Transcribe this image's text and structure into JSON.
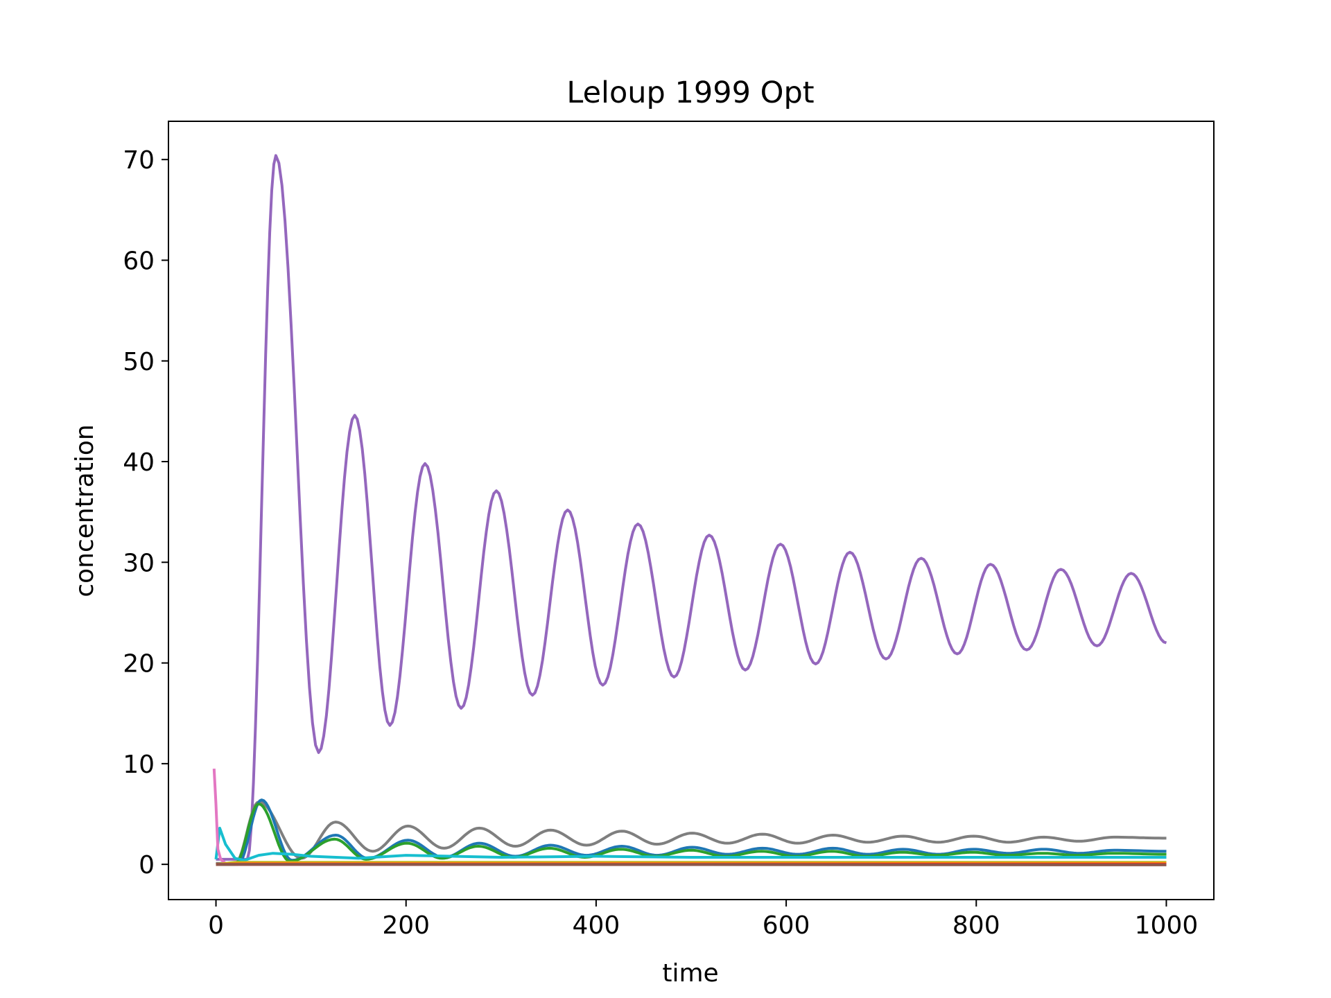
{
  "chart_data": {
    "type": "line",
    "title": "Leloup 1999 Opt",
    "xlabel": "time",
    "ylabel": "concentration",
    "xlim": [
      -50,
      1050
    ],
    "ylim": [
      -3.5,
      73.8
    ],
    "xticks": [
      0,
      200,
      400,
      600,
      800,
      1000
    ],
    "yticks": [
      0,
      10,
      20,
      30,
      40,
      50,
      60,
      70
    ],
    "grid": false,
    "legend": "none",
    "series": [
      {
        "color": "#9467bd",
        "kind": "decaying_oscillation",
        "start": 0.5,
        "rise_time": 30,
        "peaks": [
          [
            63,
            70.4
          ],
          [
            146,
            44.6
          ],
          [
            220,
            39.8
          ],
          [
            295,
            37.1
          ],
          [
            370,
            35.2
          ],
          [
            444,
            33.8
          ],
          [
            519,
            32.7
          ],
          [
            594,
            31.8
          ],
          [
            667,
            31.0
          ],
          [
            742,
            30.4
          ],
          [
            815,
            29.8
          ],
          [
            889,
            29.3
          ],
          [
            963,
            28.9
          ]
        ],
        "troughs": [
          [
            108,
            11.1
          ],
          [
            183,
            13.8
          ],
          [
            258,
            15.5
          ],
          [
            333,
            16.8
          ],
          [
            407,
            17.8
          ],
          [
            482,
            18.6
          ],
          [
            557,
            19.3
          ],
          [
            631,
            19.9
          ],
          [
            705,
            20.4
          ],
          [
            780,
            20.9
          ],
          [
            853,
            21.3
          ],
          [
            927,
            21.7
          ]
        ],
        "end": [
          1000,
          22.0
        ]
      },
      {
        "color": "#7f7f7f",
        "kind": "decaying_oscillation",
        "start": 0.1,
        "rise_time": 25,
        "peaks": [
          [
            45,
            6.2
          ],
          [
            126,
            4.2
          ],
          [
            202,
            3.8
          ],
          [
            277,
            3.6
          ],
          [
            352,
            3.4
          ],
          [
            427,
            3.3
          ],
          [
            501,
            3.1
          ],
          [
            575,
            3.0
          ],
          [
            649,
            2.9
          ],
          [
            723,
            2.8
          ],
          [
            797,
            2.8
          ],
          [
            871,
            2.7
          ],
          [
            945,
            2.7
          ]
        ],
        "troughs": [
          [
            90,
            0.6
          ],
          [
            165,
            1.3
          ],
          [
            240,
            1.6
          ],
          [
            315,
            1.8
          ],
          [
            390,
            1.9
          ],
          [
            464,
            2.0
          ],
          [
            538,
            2.1
          ],
          [
            612,
            2.1
          ],
          [
            686,
            2.2
          ],
          [
            760,
            2.2
          ],
          [
            834,
            2.2
          ],
          [
            908,
            2.3
          ]
        ],
        "end": [
          1000,
          2.6
        ]
      },
      {
        "color": "#1f77b4",
        "kind": "decaying_oscillation",
        "start": 0.0,
        "rise_time": 25,
        "peaks": [
          [
            48,
            6.4
          ],
          [
            126,
            2.9
          ],
          [
            202,
            2.4
          ],
          [
            277,
            2.1
          ],
          [
            352,
            1.9
          ],
          [
            427,
            1.8
          ],
          [
            501,
            1.7
          ],
          [
            575,
            1.6
          ],
          [
            649,
            1.6
          ],
          [
            723,
            1.5
          ],
          [
            797,
            1.5
          ],
          [
            871,
            1.5
          ],
          [
            945,
            1.4
          ]
        ],
        "troughs": [
          [
            80,
            0.4
          ],
          [
            160,
            0.6
          ],
          [
            240,
            0.7
          ],
          [
            315,
            0.8
          ],
          [
            390,
            0.9
          ],
          [
            464,
            0.9
          ],
          [
            538,
            1.0
          ],
          [
            612,
            1.0
          ],
          [
            686,
            1.0
          ],
          [
            760,
            1.0
          ],
          [
            834,
            1.1
          ],
          [
            908,
            1.1
          ]
        ],
        "end": [
          1000,
          1.3
        ]
      },
      {
        "color": "#2ca02c",
        "kind": "decaying_oscillation",
        "start": 0.0,
        "rise_time": 25,
        "peaks": [
          [
            45,
            6.0
          ],
          [
            125,
            2.5
          ],
          [
            201,
            2.1
          ],
          [
            276,
            1.8
          ],
          [
            351,
            1.6
          ],
          [
            426,
            1.5
          ],
          [
            500,
            1.4
          ],
          [
            574,
            1.3
          ],
          [
            648,
            1.3
          ],
          [
            722,
            1.2
          ],
          [
            796,
            1.2
          ],
          [
            870,
            1.1
          ],
          [
            944,
            1.1
          ]
        ],
        "troughs": [
          [
            78,
            0.3
          ],
          [
            158,
            0.5
          ],
          [
            238,
            0.6
          ],
          [
            313,
            0.7
          ],
          [
            388,
            0.7
          ],
          [
            462,
            0.8
          ],
          [
            536,
            0.8
          ],
          [
            610,
            0.8
          ],
          [
            684,
            0.8
          ],
          [
            758,
            0.9
          ],
          [
            832,
            0.9
          ],
          [
            906,
            0.9
          ]
        ],
        "end": [
          1000,
          1.0
        ]
      },
      {
        "color": "#17becf",
        "kind": "points",
        "points": [
          [
            0,
            0.5
          ],
          [
            4,
            3.6
          ],
          [
            10,
            2.0
          ],
          [
            20,
            0.6
          ],
          [
            30,
            0.4
          ],
          [
            45,
            0.9
          ],
          [
            60,
            1.1
          ],
          [
            80,
            1.0
          ],
          [
            100,
            0.8
          ],
          [
            150,
            0.6
          ],
          [
            200,
            0.9
          ],
          [
            300,
            0.7
          ],
          [
            400,
            0.8
          ],
          [
            500,
            0.7
          ],
          [
            600,
            0.7
          ],
          [
            700,
            0.7
          ],
          [
            800,
            0.7
          ],
          [
            900,
            0.7
          ],
          [
            1000,
            0.7
          ]
        ]
      },
      {
        "color": "#e377c2",
        "kind": "points",
        "points": [
          [
            -2,
            9.5
          ],
          [
            0,
            6.0
          ],
          [
            2,
            1.5
          ],
          [
            5,
            0.5
          ],
          [
            10,
            0.1
          ],
          [
            20,
            0.0
          ],
          [
            1000,
            0.0
          ]
        ]
      },
      {
        "color": "#bcbd22",
        "kind": "points",
        "points": [
          [
            0,
            0.0
          ],
          [
            20,
            0.2
          ],
          [
            100,
            0.2
          ],
          [
            500,
            0.2
          ],
          [
            1000,
            0.2
          ]
        ]
      },
      {
        "color": "#ff7f0e",
        "kind": "points",
        "points": [
          [
            0,
            0.0
          ],
          [
            30,
            0.1
          ],
          [
            1000,
            0.1
          ]
        ]
      },
      {
        "color": "#d62728",
        "kind": "points",
        "points": [
          [
            0,
            0.0
          ],
          [
            1000,
            0.0
          ]
        ]
      },
      {
        "color": "#8c564b",
        "kind": "points",
        "points": [
          [
            0,
            0.0
          ],
          [
            1000,
            -0.05
          ]
        ]
      }
    ]
  }
}
